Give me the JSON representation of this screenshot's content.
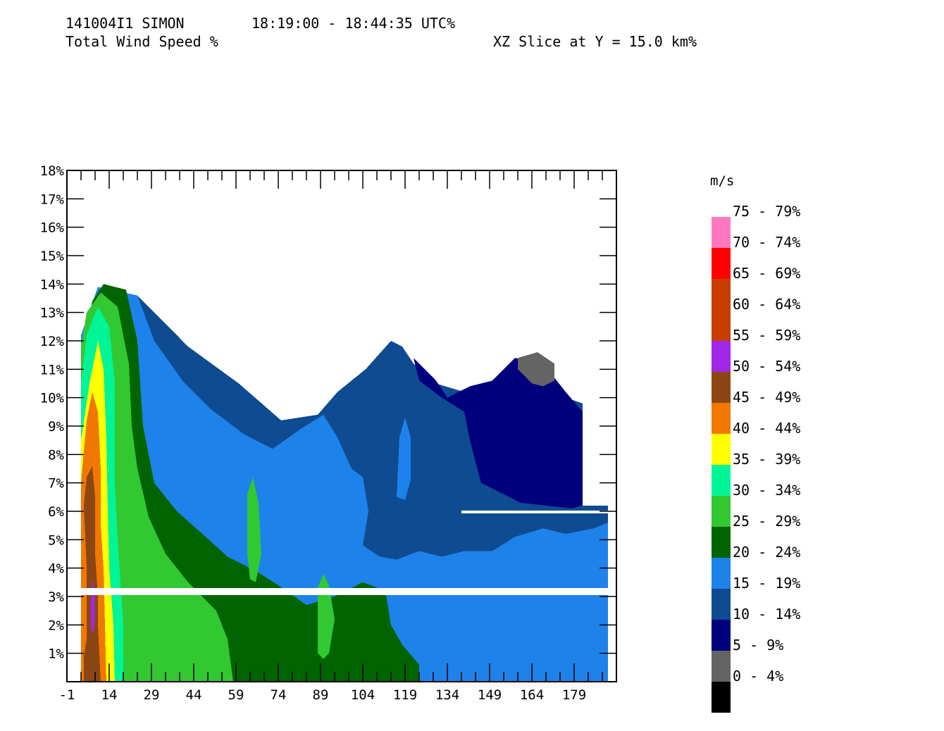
{
  "header": {
    "storm": "141004I1 SIMON",
    "time_range": "18:19:00 - 18:44:35 UTC%",
    "field": "Total Wind Speed %",
    "slice": "XZ Slice at Y = 15.0 km%"
  },
  "chart_data": {
    "type": "heatmap",
    "title": "Total Wind Speed %",
    "subtitle": "XZ Slice at Y = 15.0 km%",
    "xlabel": "",
    "ylabel": "",
    "x_ticks": [
      "-1",
      "14",
      "29",
      "44",
      "59",
      "74",
      "89",
      "104",
      "119",
      "134",
      "149",
      "164",
      "179"
    ],
    "x_tick_values": [
      -1,
      14,
      29,
      44,
      59,
      74,
      89,
      104,
      119,
      134,
      149,
      164,
      179
    ],
    "xlim": [
      -1,
      194
    ],
    "y_ticks": [
      "1%",
      "2%",
      "3%",
      "4%",
      "5%",
      "6%",
      "7%",
      "8%",
      "9%",
      "10%",
      "11%",
      "12%",
      "13%",
      "14%",
      "15%",
      "16%",
      "17%",
      "18%"
    ],
    "y_tick_values": [
      1,
      2,
      3,
      4,
      5,
      6,
      7,
      8,
      9,
      10,
      11,
      12,
      13,
      14,
      15,
      16,
      17,
      18
    ],
    "ylim": [
      0,
      18
    ],
    "gaps_km": [
      3.0,
      6.0
    ],
    "legend": {
      "title": "m/s",
      "placement": "right",
      "bins": [
        {
          "label": "75 - 79%",
          "color": "#ff78c0"
        },
        {
          "label": "70 - 74%",
          "color": "#ff0000"
        },
        {
          "label": "65 - 69%",
          "color": "#c83c00"
        },
        {
          "label": "60 - 64%",
          "color": "#c83c00"
        },
        {
          "label": "55 - 59%",
          "color": "#a028e6"
        },
        {
          "label": "50 - 54%",
          "color": "#8c4614"
        },
        {
          "label": "45 - 49%",
          "color": "#f07800"
        },
        {
          "label": "40 - 44%",
          "color": "#ffff00"
        },
        {
          "label": "35 - 39%",
          "color": "#00f596"
        },
        {
          "label": "30 - 34%",
          "color": "#32c832"
        },
        {
          "label": "25 - 29%",
          "color": "#006400"
        },
        {
          "label": "20 - 24%",
          "color": "#1e82eb"
        },
        {
          "label": "15 - 19%",
          "color": "#0f4b91"
        },
        {
          "label": "10 - 14%",
          "color": "#00007d"
        },
        {
          "label": "5 - 9%",
          "color": "#646464"
        },
        {
          "label": "0 - 4%",
          "color": "#000000"
        }
      ]
    },
    "regions": [
      {
        "speed": "15-19",
        "color": "#0f4b91",
        "points": [
          [
            4,
            0
          ],
          [
            4,
            12
          ],
          [
            10,
            13.8
          ],
          [
            24,
            13.6
          ],
          [
            42,
            11.8
          ],
          [
            60,
            10.5
          ],
          [
            75,
            9.2
          ],
          [
            88,
            9.4
          ],
          [
            95,
            10.2
          ],
          [
            105,
            11
          ],
          [
            114,
            12
          ],
          [
            118,
            11.8
          ],
          [
            122,
            11.2
          ],
          [
            130,
            10.5
          ],
          [
            140,
            10.2
          ],
          [
            150,
            10.5
          ],
          [
            158,
            11.2
          ],
          [
            170,
            10.2
          ],
          [
            182,
            9.8
          ],
          [
            182,
            6.2
          ],
          [
            191,
            6.2
          ],
          [
            191,
            0
          ]
        ]
      },
      {
        "speed": "10-14",
        "color": "#00007d",
        "points": [
          [
            122,
            11.4
          ],
          [
            130,
            10.6
          ],
          [
            134,
            10
          ],
          [
            142,
            10.4
          ],
          [
            150,
            10.6
          ],
          [
            158,
            11.4
          ],
          [
            168,
            11.2
          ],
          [
            176,
            10.2
          ],
          [
            182,
            9.5
          ],
          [
            182,
            6.2
          ],
          [
            178,
            6.1
          ],
          [
            160,
            6.3
          ],
          [
            146,
            7
          ],
          [
            142,
            8.5
          ],
          [
            140,
            9.5
          ],
          [
            132,
            10
          ],
          [
            124,
            10.6
          ]
        ]
      },
      {
        "speed": "5-9",
        "color": "#646464",
        "points": [
          [
            159,
            11.4
          ],
          [
            166,
            11.6
          ],
          [
            172,
            11.2
          ],
          [
            172,
            10.6
          ],
          [
            168,
            10.4
          ],
          [
            164,
            10.5
          ],
          [
            159,
            11
          ]
        ]
      },
      {
        "speed": "20-24",
        "color": "#1e82eb",
        "points": [
          [
            4,
            0
          ],
          [
            4,
            12.2
          ],
          [
            10,
            13.9
          ],
          [
            24,
            13.6
          ],
          [
            30,
            12
          ],
          [
            40,
            10.6
          ],
          [
            50,
            9.6
          ],
          [
            62,
            8.7
          ],
          [
            72,
            8.2
          ],
          [
            82,
            8.9
          ],
          [
            90,
            9.4
          ],
          [
            95,
            8.6
          ],
          [
            100,
            7.5
          ],
          [
            104,
            7.2
          ],
          [
            106,
            6
          ],
          [
            104,
            4.8
          ],
          [
            110,
            4.4
          ],
          [
            116,
            4.3
          ],
          [
            124,
            4.6
          ],
          [
            132,
            4.4
          ],
          [
            140,
            4.6
          ],
          [
            150,
            4.6
          ],
          [
            158,
            5.1
          ],
          [
            168,
            5.4
          ],
          [
            176,
            5.2
          ],
          [
            186,
            5.4
          ],
          [
            191,
            5.6
          ],
          [
            191,
            0
          ]
        ]
      },
      {
        "speed": "20-24",
        "color": "#1e82eb",
        "points": [
          [
            116,
            6.5
          ],
          [
            117,
            8.6
          ],
          [
            119,
            9.3
          ],
          [
            121,
            8.6
          ],
          [
            121,
            7.1
          ],
          [
            119,
            6.4
          ]
        ]
      },
      {
        "speed": "25-29",
        "color": "#006400",
        "points": [
          [
            4,
            0
          ],
          [
            4,
            11.3
          ],
          [
            8,
            13.4
          ],
          [
            12,
            14
          ],
          [
            20,
            13.8
          ],
          [
            24,
            12
          ],
          [
            26,
            9
          ],
          [
            30,
            7
          ],
          [
            38,
            6
          ],
          [
            46,
            5.3
          ],
          [
            56,
            4.4
          ],
          [
            66,
            3.9
          ],
          [
            74,
            3.4
          ],
          [
            84,
            2.7
          ],
          [
            94,
            3
          ],
          [
            104,
            3.5
          ],
          [
            112,
            3.2
          ],
          [
            114,
            2
          ],
          [
            118,
            1.3
          ],
          [
            124,
            0.6
          ],
          [
            124,
            0
          ]
        ]
      },
      {
        "speed": "30-34",
        "color": "#32c832",
        "points": [
          [
            4,
            0
          ],
          [
            4,
            11.8
          ],
          [
            6,
            13
          ],
          [
            11,
            13.7
          ],
          [
            17,
            13.2
          ],
          [
            21,
            11.2
          ],
          [
            22,
            9
          ],
          [
            24,
            7.5
          ],
          [
            28,
            5.8
          ],
          [
            34,
            4.5
          ],
          [
            42,
            3.5
          ],
          [
            52,
            2.5
          ],
          [
            56,
            1.5
          ],
          [
            58,
            0
          ]
        ]
      },
      {
        "speed": "30-34",
        "color": "#32c832",
        "points": [
          [
            63,
            4.5
          ],
          [
            63,
            6.6
          ],
          [
            65,
            7.2
          ],
          [
            67,
            6.3
          ],
          [
            68,
            4.5
          ],
          [
            66,
            3.5
          ],
          [
            64,
            3.6
          ]
        ]
      },
      {
        "speed": "30-34",
        "color": "#32c832",
        "points": [
          [
            88,
            1
          ],
          [
            88,
            3.3
          ],
          [
            90,
            3.8
          ],
          [
            92,
            3.4
          ],
          [
            94,
            2.2
          ],
          [
            92,
            1
          ],
          [
            90,
            0.8
          ]
        ]
      },
      {
        "speed": "35-39",
        "color": "#00f596",
        "points": [
          [
            4,
            0
          ],
          [
            4,
            10.5
          ],
          [
            6,
            12.2
          ],
          [
            10,
            13.2
          ],
          [
            14,
            12.5
          ],
          [
            16,
            10.5
          ],
          [
            16,
            7
          ],
          [
            17,
            5
          ],
          [
            18,
            3.5
          ],
          [
            19,
            2
          ],
          [
            19,
            0
          ]
        ]
      },
      {
        "speed": "40-44",
        "color": "#ffff00",
        "points": [
          [
            4,
            0
          ],
          [
            4,
            8.5
          ],
          [
            7,
            10.5
          ],
          [
            10,
            12
          ],
          [
            12,
            11
          ],
          [
            13,
            8.5
          ],
          [
            13.5,
            6
          ],
          [
            14,
            4
          ],
          [
            15.5,
            2
          ],
          [
            16,
            0
          ]
        ]
      },
      {
        "speed": "45-49",
        "color": "#f07800",
        "points": [
          [
            4,
            0
          ],
          [
            4,
            7
          ],
          [
            6,
            9.2
          ],
          [
            8,
            10.2
          ],
          [
            10,
            9.5
          ],
          [
            11,
            7.5
          ],
          [
            11,
            5.5
          ],
          [
            12,
            4
          ],
          [
            12.5,
            2
          ],
          [
            13,
            0
          ]
        ]
      },
      {
        "speed": "50-54",
        "color": "#8c4614",
        "points": [
          [
            5,
            0
          ],
          [
            5,
            0.9
          ],
          [
            6,
            1.5
          ],
          [
            6,
            4
          ],
          [
            5,
            6.2
          ],
          [
            6,
            7.2
          ],
          [
            8,
            7.6
          ],
          [
            9,
            6.5
          ],
          [
            9,
            4.5
          ],
          [
            10,
            3
          ],
          [
            10,
            2
          ],
          [
            11,
            0
          ]
        ]
      },
      {
        "speed": "55-59",
        "color": "#a028e6",
        "points": [
          [
            7.6,
            1.8
          ],
          [
            7.4,
            2.6
          ],
          [
            8,
            3.6
          ],
          [
            8.9,
            3.2
          ],
          [
            8.9,
            2.2
          ],
          [
            8.4,
            1.7
          ]
        ]
      }
    ]
  }
}
